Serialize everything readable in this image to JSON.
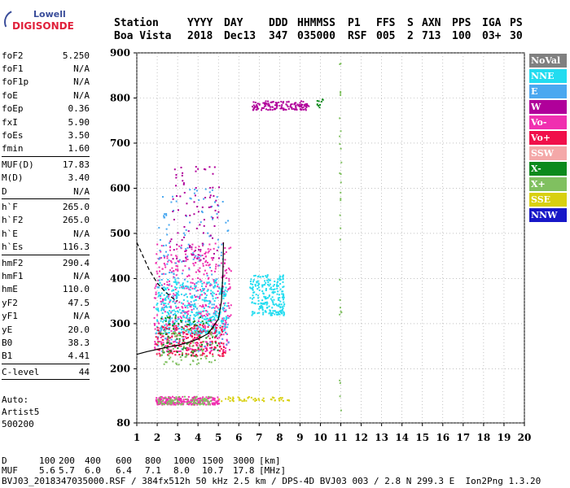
{
  "logo": {
    "line1": "Lowell",
    "line2": "DIGISONDE"
  },
  "header": {
    "row1": [
      "Station",
      "YYYY",
      "DAY",
      "DDD",
      "HHMMSS",
      "P1",
      "FFS",
      "S",
      "AXN",
      "PPS",
      "IGA",
      "PS"
    ],
    "row2": [
      "Boa Vista",
      "2018",
      "Dec13",
      "347",
      "035000",
      "RSF",
      "005",
      "2",
      "713",
      "100",
      "03+",
      "30"
    ]
  },
  "parameters": [
    {
      "name": "foF2",
      "value": "5.250"
    },
    {
      "name": "foF1",
      "value": "N/A"
    },
    {
      "name": "foF1p",
      "value": "N/A"
    },
    {
      "name": "foE",
      "value": "N/A"
    },
    {
      "name": "foEp",
      "value": "0.36"
    },
    {
      "name": "fxI",
      "value": "5.90"
    },
    {
      "name": "foEs",
      "value": "3.50"
    },
    {
      "name": "fmin",
      "value": "1.60"
    },
    {
      "sep": true
    },
    {
      "name": "MUF(D)",
      "value": "17.83"
    },
    {
      "name": "M(D)",
      "value": "3.40"
    },
    {
      "name": "D",
      "value": "N/A"
    },
    {
      "sep": true
    },
    {
      "name": "h`F",
      "value": "265.0"
    },
    {
      "name": "h`F2",
      "value": "265.0"
    },
    {
      "name": "h`E",
      "value": "N/A"
    },
    {
      "name": "h`Es",
      "value": "116.3"
    },
    {
      "sep": true
    },
    {
      "name": "hmF2",
      "value": "290.4"
    },
    {
      "name": "hmF1",
      "value": "N/A"
    },
    {
      "name": "hmE",
      "value": "110.0"
    },
    {
      "name": "yF2",
      "value": "47.5"
    },
    {
      "name": "yF1",
      "value": "N/A"
    },
    {
      "name": "yE",
      "value": "20.0"
    },
    {
      "name": "B0",
      "value": "38.3"
    },
    {
      "name": "B1",
      "value": "4.41"
    },
    {
      "sep": true
    },
    {
      "name": "C-level",
      "value": "44"
    },
    {
      "sep": true
    }
  ],
  "auto": {
    "line1": "Auto:",
    "line2": "Artist5",
    "line3": "500200"
  },
  "legend": [
    {
      "label": "NoVal",
      "color": "#808080"
    },
    {
      "label": "NNE",
      "color": "#22dcf0"
    },
    {
      "label": "E",
      "color": "#4aa8f0"
    },
    {
      "label": "W",
      "color": "#b0009a"
    },
    {
      "label": "Vo-",
      "color": "#f030b0"
    },
    {
      "label": "Vo+",
      "color": "#f0104a"
    },
    {
      "label": "SSW",
      "color": "#f4a8a8"
    },
    {
      "label": "X-",
      "color": "#0c8a1c"
    },
    {
      "label": "X+",
      "color": "#80c060"
    },
    {
      "label": "SSE",
      "color": "#d8d010"
    },
    {
      "label": "NNW",
      "color": "#1818c8"
    }
  ],
  "bottom": {
    "row1_label": "D",
    "row1_values": [
      "100",
      "200",
      "400",
      "600",
      "800",
      "1000",
      "1500",
      "3000"
    ],
    "row1_unit": "[km]",
    "row2_label": "MUF",
    "row2_values": [
      "5.6",
      "5.7",
      "6.0",
      "6.4",
      "7.1",
      "8.0",
      "10.7",
      "17.8"
    ],
    "row2_unit": "[MHz]",
    "footer": "BVJ03_2018347035000.RSF / 384fx512h 50 kHz 2.5 km / DPS-4D BVJ03 003 / 2.8 N 299.3 E  Ion2Png 1.3.20"
  },
  "chart_data": {
    "type": "scatter",
    "title": "",
    "xlabel": "",
    "ylabel": "",
    "xlim": [
      1,
      20
    ],
    "ylim": [
      80,
      900
    ],
    "x_ticks": [
      1,
      2,
      3,
      4,
      5,
      6,
      7,
      8,
      9,
      10,
      11,
      12,
      13,
      14,
      15,
      16,
      17,
      18,
      19,
      20
    ],
    "y_ticks": [
      80,
      200,
      300,
      400,
      500,
      600,
      700,
      800,
      900
    ],
    "grid": true,
    "clusters": [
      {
        "series": "Vo-",
        "x": [
          1.8,
          5.6
        ],
        "y": [
          240,
          480
        ],
        "count": 520
      },
      {
        "series": "NNE",
        "x": [
          1.9,
          5.4
        ],
        "y": [
          280,
          400
        ],
        "count": 420
      },
      {
        "series": "E",
        "x": [
          2.0,
          5.5
        ],
        "y": [
          240,
          600
        ],
        "count": 180
      },
      {
        "series": "NNE",
        "x": [
          6.5,
          8.2
        ],
        "y": [
          320,
          410
        ],
        "count": 220
      },
      {
        "series": "Vo+",
        "x": [
          1.9,
          5.3
        ],
        "y": [
          230,
          300
        ],
        "count": 200
      },
      {
        "series": "X-",
        "x": [
          2.0,
          5.0
        ],
        "y": [
          230,
          320
        ],
        "count": 80
      },
      {
        "series": "X+",
        "x": [
          2.0,
          4.8
        ],
        "y": [
          210,
          290
        ],
        "count": 80
      },
      {
        "series": "W",
        "x": [
          2.6,
          5.0
        ],
        "y": [
          440,
          650
        ],
        "count": 90
      },
      {
        "series": "Vo-",
        "x": [
          1.9,
          5.0
        ],
        "y": [
          122,
          140
        ],
        "count": 260
      },
      {
        "series": "X+",
        "x": [
          2.0,
          4.6
        ],
        "y": [
          122,
          140
        ],
        "count": 90
      },
      {
        "series": "SSE",
        "x": [
          5.0,
          8.6
        ],
        "y": [
          130,
          140
        ],
        "count": 50
      },
      {
        "series": "W",
        "x": [
          6.6,
          9.4
        ],
        "y": [
          775,
          795
        ],
        "count": 140
      },
      {
        "series": "X-",
        "x": [
          9.8,
          10.1
        ],
        "y": [
          780,
          800
        ],
        "count": 10
      },
      {
        "series": "X+",
        "x": [
          10.9,
          11.0
        ],
        "y": [
          100,
          880
        ],
        "count": 30
      }
    ],
    "curves": [
      {
        "name": "profile",
        "style": "solid",
        "x": [
          1.0,
          1.5,
          2.0,
          2.5,
          3.0,
          3.5,
          4.0,
          4.5,
          5.0,
          5.15,
          5.22,
          5.25
        ],
        "y": [
          232,
          238,
          243,
          248,
          252,
          258,
          266,
          278,
          310,
          350,
          410,
          480
        ]
      },
      {
        "name": "profile-extrap",
        "style": "dashed",
        "x": [
          1.0,
          1.3,
          1.6,
          2.0,
          2.4,
          2.8,
          3.0
        ],
        "y": [
          480,
          450,
          420,
          390,
          370,
          355,
          350
        ]
      }
    ]
  }
}
